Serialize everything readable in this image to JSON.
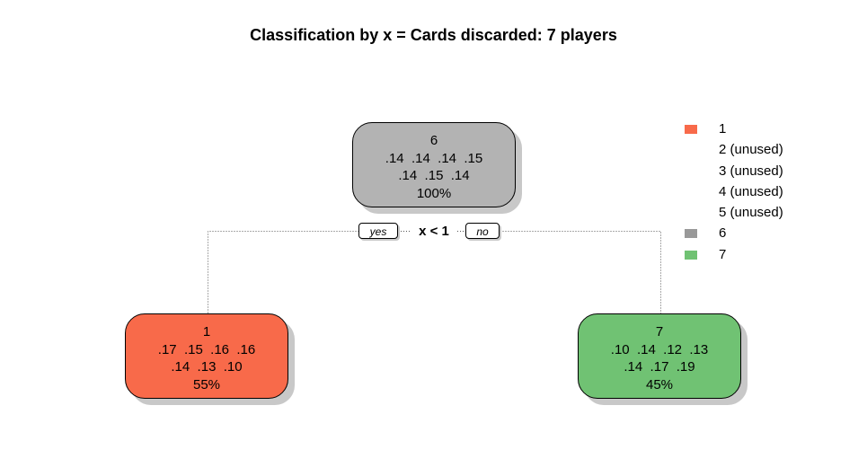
{
  "title": "Classification by x = Cards discarded: 7 players",
  "tree": {
    "root": {
      "class": "6",
      "probs_line1": ".14  .14  .14  .15",
      "probs_line2": ".14  .15  .14",
      "percent": "100%",
      "color": "#b3b3b3"
    },
    "split": {
      "condition": "x < 1",
      "yes_label": "yes",
      "no_label": "no"
    },
    "left": {
      "class": "1",
      "probs_line1": ".17  .15  .16  .16",
      "probs_line2": ".14  .13  .10",
      "percent": "55%",
      "color": "#f86a4a"
    },
    "right": {
      "class": "7",
      "probs_line1": ".10  .14  .12  .13",
      "probs_line2": ".14  .17  .19",
      "percent": "45%",
      "color": "#70c273"
    }
  },
  "legend": [
    {
      "label": "1",
      "color": "#f86a4a"
    },
    {
      "label": "2 (unused)",
      "color": null
    },
    {
      "label": "3 (unused)",
      "color": null
    },
    {
      "label": "4 (unused)",
      "color": null
    },
    {
      "label": "5 (unused)",
      "color": null
    },
    {
      "label": "6",
      "color": "#999999"
    },
    {
      "label": "7",
      "color": "#70c273"
    }
  ]
}
